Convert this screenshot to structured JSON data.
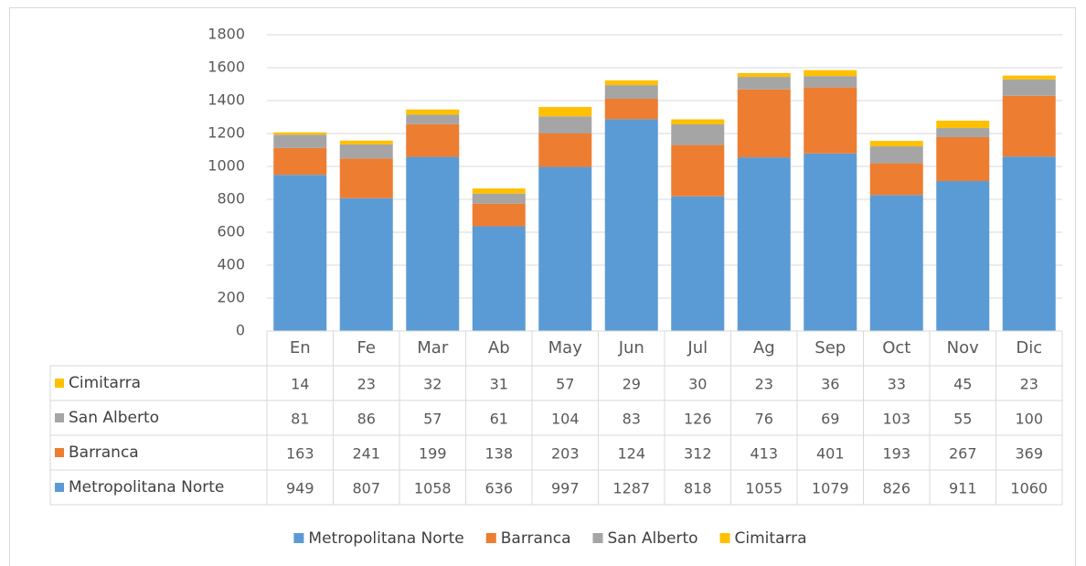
{
  "chart_data": {
    "type": "stacked_bar",
    "categories": [
      "En",
      "Fe",
      "Mar",
      "Ab",
      "May",
      "Jun",
      "Jul",
      "Ag",
      "Sep",
      "Oct",
      "Nov",
      "Dic"
    ],
    "series": [
      {
        "name": "Metropolitana Norte",
        "color": "#5b9bd5",
        "values": [
          949,
          807,
          1058,
          636,
          997,
          1287,
          818,
          1055,
          1079,
          826,
          911,
          1060
        ]
      },
      {
        "name": "Barranca",
        "color": "#ed7d31",
        "values": [
          163,
          241,
          199,
          138,
          203,
          124,
          312,
          413,
          401,
          193,
          267,
          369
        ]
      },
      {
        "name": "San Alberto",
        "color": "#a5a5a5",
        "values": [
          81,
          86,
          57,
          61,
          104,
          83,
          126,
          76,
          69,
          103,
          55,
          100
        ]
      },
      {
        "name": "Cimitarra",
        "color": "#ffc000",
        "values": [
          14,
          23,
          32,
          31,
          57,
          29,
          30,
          23,
          36,
          33,
          45,
          23
        ]
      }
    ],
    "ylim": [
      0,
      1800
    ],
    "yticks": [
      0,
      200,
      400,
      600,
      800,
      1000,
      1200,
      1400,
      1600,
      1800
    ],
    "grid": true,
    "legend": "bottom",
    "data_table": true
  }
}
